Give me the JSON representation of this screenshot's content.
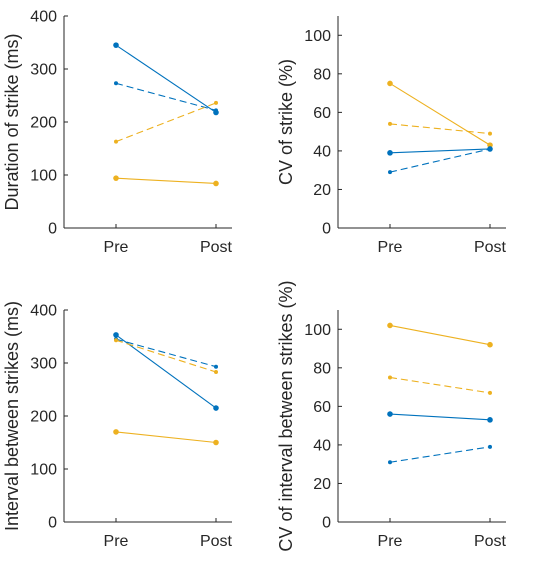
{
  "colors": {
    "blue": "#0072BD",
    "yellow": "#EDB120",
    "axis": "#262626"
  },
  "chart_data": [
    {
      "type": "line",
      "categories": [
        "Pre",
        "Post"
      ],
      "ylabel": "Duration of strike (ms)",
      "ylim": [
        0,
        400
      ],
      "yticks": [
        0,
        100,
        200,
        300,
        400
      ],
      "series": [
        {
          "color": "#0072BD",
          "dash": false,
          "values": [
            345,
            218
          ]
        },
        {
          "color": "#0072BD",
          "dash": true,
          "values": [
            273,
            222
          ]
        },
        {
          "color": "#EDB120",
          "dash": true,
          "values": [
            163,
            236
          ]
        },
        {
          "color": "#EDB120",
          "dash": false,
          "values": [
            94,
            84
          ]
        }
      ]
    },
    {
      "type": "line",
      "categories": [
        "Pre",
        "Post"
      ],
      "ylabel": "CV of strike (%)",
      "ylim": [
        0,
        110
      ],
      "yticks": [
        0,
        20,
        40,
        60,
        80,
        100
      ],
      "series": [
        {
          "color": "#EDB120",
          "dash": false,
          "values": [
            75,
            43
          ]
        },
        {
          "color": "#EDB120",
          "dash": true,
          "values": [
            54,
            49
          ]
        },
        {
          "color": "#0072BD",
          "dash": false,
          "values": [
            39,
            41
          ]
        },
        {
          "color": "#0072BD",
          "dash": true,
          "values": [
            29,
            41
          ]
        }
      ]
    },
    {
      "type": "line",
      "categories": [
        "Pre",
        "Post"
      ],
      "ylabel": "Interval between strikes (ms)",
      "ylim": [
        0,
        400
      ],
      "yticks": [
        0,
        100,
        200,
        300,
        400
      ],
      "series": [
        {
          "color": "#0072BD",
          "dash": false,
          "values": [
            353,
            215
          ]
        },
        {
          "color": "#0072BD",
          "dash": true,
          "values": [
            345,
            293
          ]
        },
        {
          "color": "#EDB120",
          "dash": true,
          "values": [
            343,
            283
          ]
        },
        {
          "color": "#EDB120",
          "dash": false,
          "values": [
            170,
            150
          ]
        }
      ]
    },
    {
      "type": "line",
      "categories": [
        "Pre",
        "Post"
      ],
      "ylabel": "CV of interval between strikes (%)",
      "ylim": [
        0,
        110
      ],
      "yticks": [
        0,
        20,
        40,
        60,
        80,
        100
      ],
      "series": [
        {
          "color": "#EDB120",
          "dash": false,
          "values": [
            102,
            92
          ]
        },
        {
          "color": "#EDB120",
          "dash": true,
          "values": [
            75,
            67
          ]
        },
        {
          "color": "#0072BD",
          "dash": false,
          "values": [
            56,
            53
          ]
        },
        {
          "color": "#0072BD",
          "dash": true,
          "values": [
            31,
            39
          ]
        }
      ]
    }
  ]
}
